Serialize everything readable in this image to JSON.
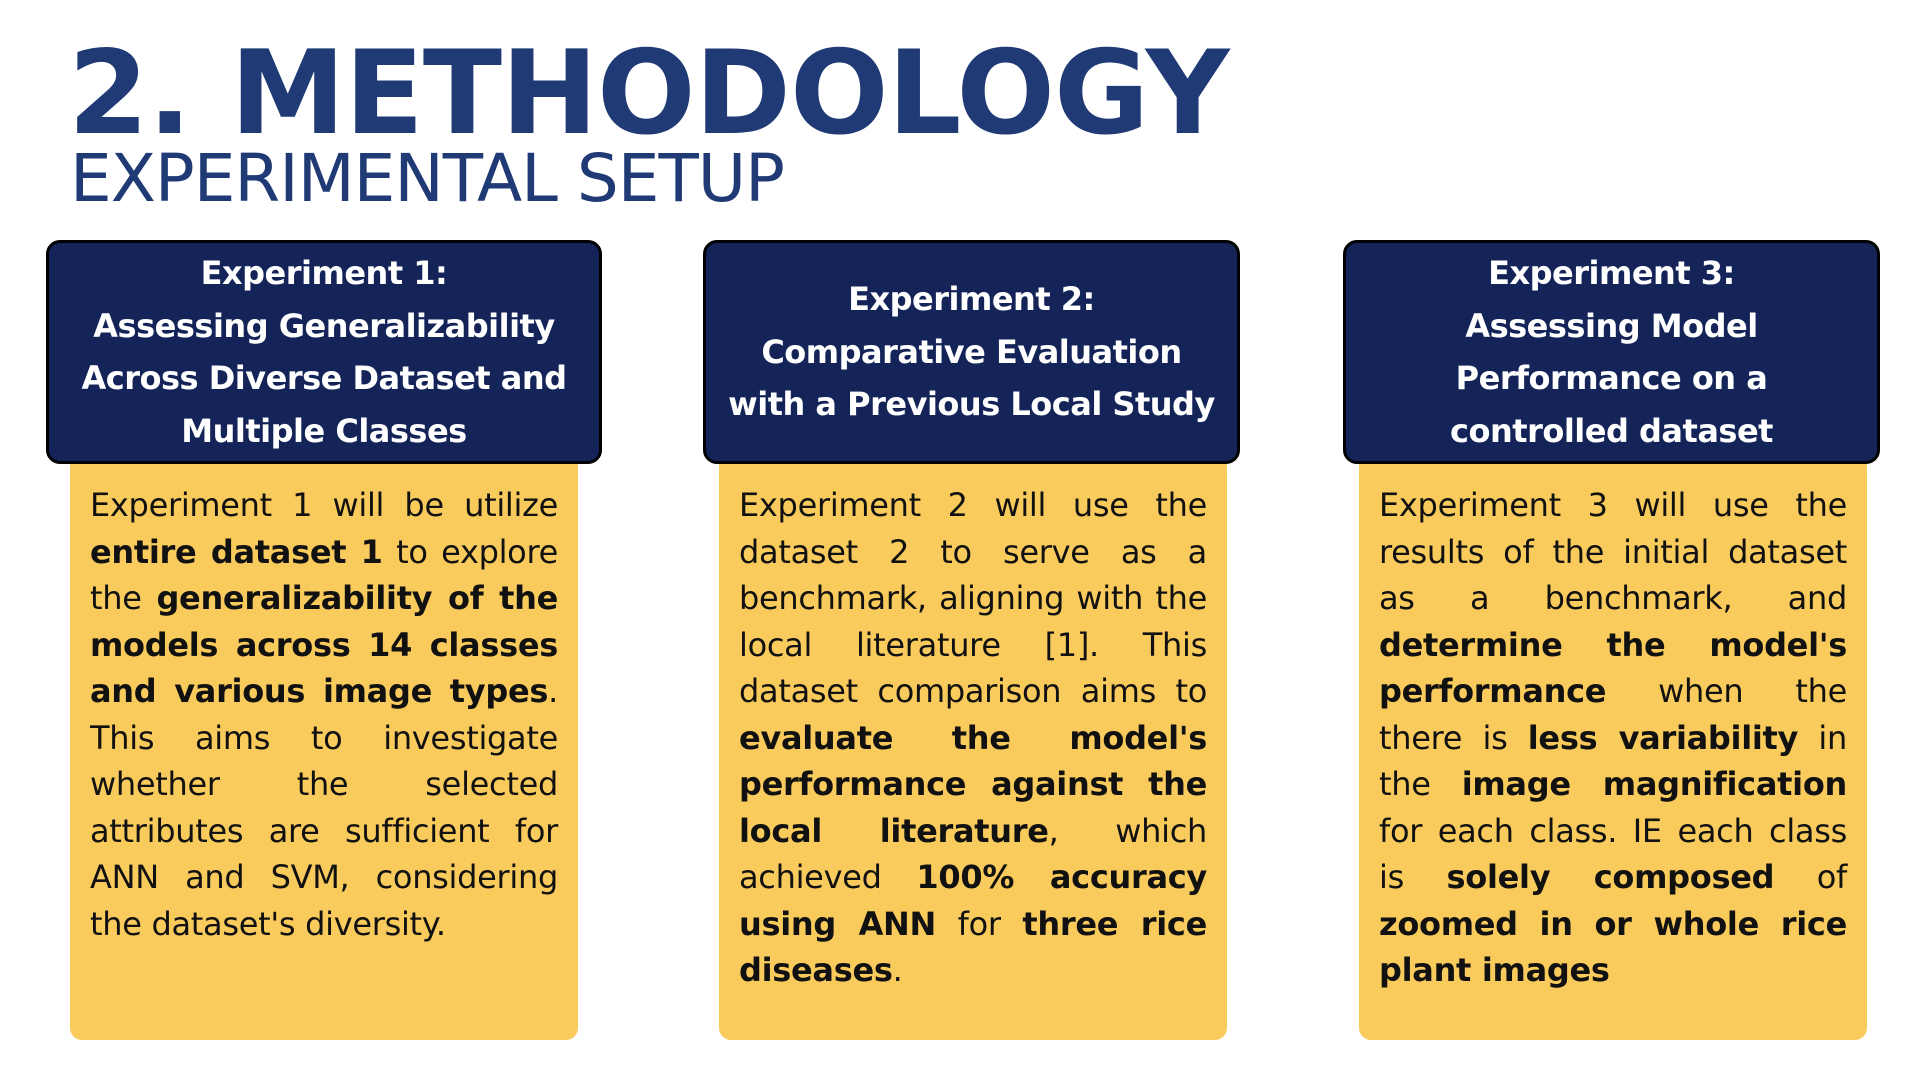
{
  "header": {
    "title": "2. METHODOLOGY",
    "subtitle": "EXPERIMENTAL SETUP"
  },
  "colors": {
    "title": "#1f3a75",
    "header_box": "#142458",
    "body_box": "#f9cb5c",
    "header_text": "#ffffff"
  },
  "experiments": [
    {
      "heading": "Experiment 1:\nAssessing Generalizability\nAcross Diverse Dataset and\nMultiple Classes",
      "segments": [
        {
          "t": "Experiment 1 will be utilize ",
          "b": false
        },
        {
          "t": "entire dataset 1",
          "b": true
        },
        {
          "t": " to explore the ",
          "b": false
        },
        {
          "t": "generalizability of the models across 14 classes and various image types",
          "b": true
        },
        {
          "t": ". This aims to investigate whether the selected attributes are sufficient for ANN and SVM, considering the dataset's diversity.",
          "b": false
        }
      ]
    },
    {
      "heading": "Experiment 2:\nComparative Evaluation\nwith a Previous Local Study",
      "segments": [
        {
          "t": "Experiment 2 will use the dataset 2 to serve as a benchmark, aligning with the local literature [1]. This dataset comparison aims to ",
          "b": false
        },
        {
          "t": "evaluate the model's performance against the local literature",
          "b": true
        },
        {
          "t": ", which achieved ",
          "b": false
        },
        {
          "t": "100% accuracy using ANN",
          "b": true
        },
        {
          "t": " for ",
          "b": false
        },
        {
          "t": "three rice diseases",
          "b": true
        },
        {
          "t": ".",
          "b": false
        }
      ]
    },
    {
      "heading": "Experiment 3:\nAssessing Model\nPerformance on a\ncontrolled dataset",
      "segments": [
        {
          "t": "Experiment 3 will use the results of the initial dataset as a benchmark, and ",
          "b": false
        },
        {
          "t": "determine the model's performance",
          "b": true
        },
        {
          "t": " when the there is ",
          "b": false
        },
        {
          "t": "less variability",
          "b": true
        },
        {
          "t": " in the ",
          "b": false
        },
        {
          "t": "image magnification",
          "b": true
        },
        {
          "t": " for each class. IE each class is ",
          "b": false
        },
        {
          "t": "solely composed",
          "b": true
        },
        {
          "t": " of ",
          "b": false
        },
        {
          "t": "zoomed in or whole rice plant images",
          "b": true
        }
      ]
    }
  ]
}
